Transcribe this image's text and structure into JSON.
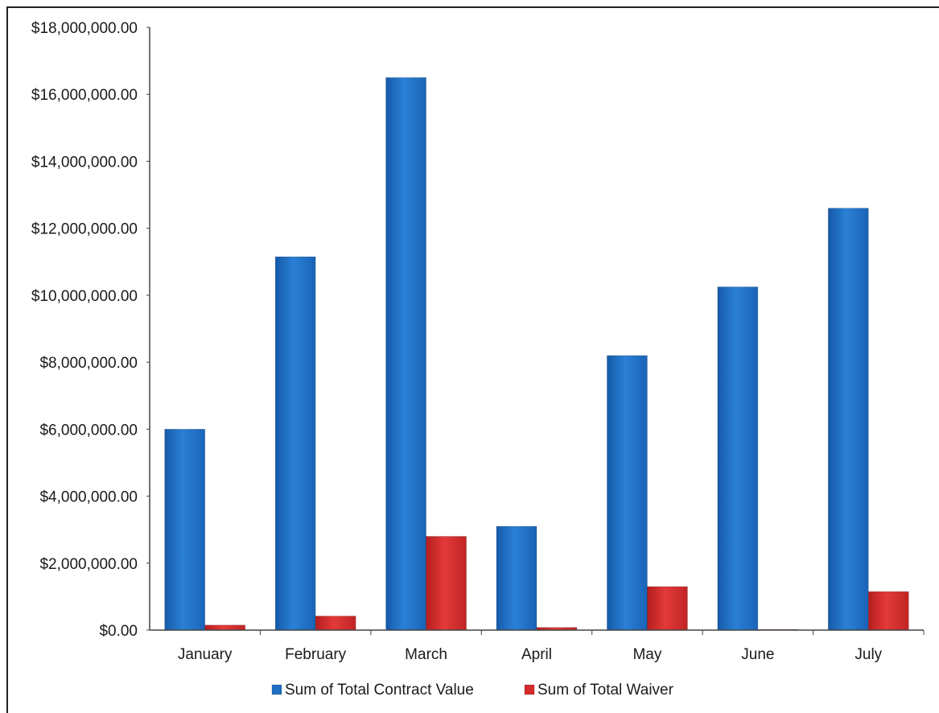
{
  "chart_data": {
    "type": "bar",
    "title": "",
    "xlabel": "",
    "ylabel": "",
    "ylim": [
      0,
      18000000
    ],
    "y_ticks": [
      "$0.00",
      "$2,000,000.00",
      "$4,000,000.00",
      "$6,000,000.00",
      "$8,000,000.00",
      "$10,000,000.00",
      "$12,000,000.00",
      "$14,000,000.00",
      "$16,000,000.00",
      "$18,000,000.00"
    ],
    "categories": [
      "January",
      "February",
      "March",
      "April",
      "May",
      "June",
      "July"
    ],
    "series": [
      {
        "name": "Sum of Total Contract Value",
        "color": "#1f6fc2",
        "values": [
          6000000,
          11150000,
          16500000,
          3100000,
          8200000,
          10250000,
          12600000
        ]
      },
      {
        "name": "Sum of Total Waiver",
        "color": "#d42a2a",
        "values": [
          150000,
          420000,
          2800000,
          80000,
          1300000,
          20000,
          1150000
        ]
      }
    ],
    "grid": false,
    "legend_position": "bottom"
  }
}
